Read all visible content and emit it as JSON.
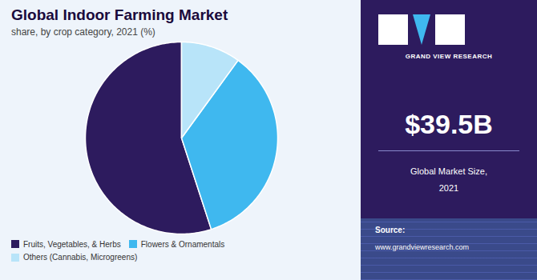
{
  "chart_data": {
    "type": "pie",
    "title": "Global Indoor Farming Market",
    "subtitle": "share, by crop category, 2021 (%)",
    "categories": [
      "Fruits, Vegetables, & Herbs",
      "Flowers & Ornamentals",
      "Others (Cannabis, Microgreens)"
    ],
    "values": [
      55,
      35,
      10
    ],
    "colors": [
      "#2d1b5e",
      "#3fb8ef",
      "#b8e4f9"
    ],
    "legend": "bottom",
    "annotations": [
      "GRAND VIEW RESEARCH",
      "$39.5B",
      "Global Market Size,",
      "2021",
      "Source:",
      "www.grandviewresearch.com"
    ]
  }
}
